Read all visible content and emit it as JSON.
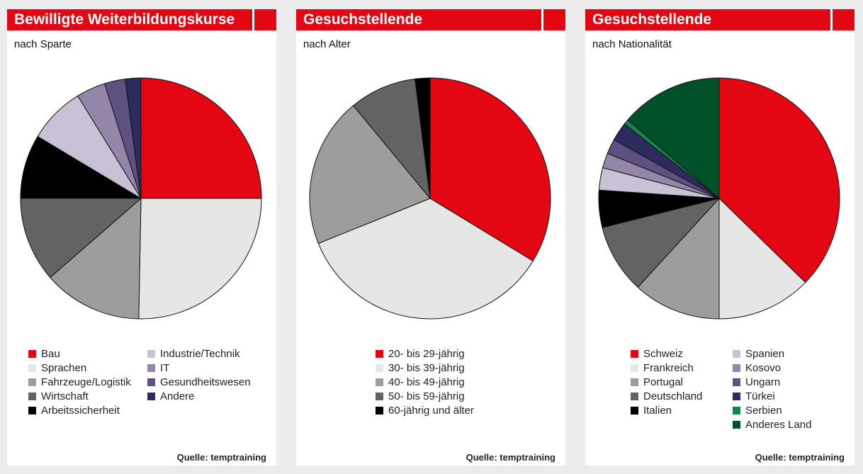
{
  "chart_data": [
    {
      "type": "pie",
      "title": "Bewilligte Weiterbildungskurse",
      "subtitle": "nach Sparte",
      "source": "Quelle: temptraining",
      "slices": [
        {
          "label": "Bau",
          "value": 25.0,
          "color": "#e30613"
        },
        {
          "label": "Sprachen",
          "value": 25.3,
          "color": "#e6e6e6"
        },
        {
          "label": "Fahrzeuge/Logistik",
          "value": 13.3,
          "color": "#9d9d9c"
        },
        {
          "label": "Wirtschaft",
          "value": 11.4,
          "color": "#646363"
        },
        {
          "label": "Arbeitssicherheit",
          "value": 8.6,
          "color": "#000000"
        },
        {
          "label": "Industrie/Technik",
          "value": 7.6,
          "color": "#c9c1d6"
        },
        {
          "label": "IT",
          "value": 3.9,
          "color": "#9386a8"
        },
        {
          "label": "Gesundheitswesen",
          "value": 2.8,
          "color": "#5e5181"
        },
        {
          "label": "Andere",
          "value": 2.1,
          "color": "#2d2a5e"
        }
      ]
    },
    {
      "type": "pie",
      "title": "Gesuchstellende",
      "subtitle": "nach Alter",
      "source": "Quelle: temptraining",
      "slices": [
        {
          "label": "20- bis 29-jährig",
          "value": 33.7,
          "color": "#e30613"
        },
        {
          "label": "30- bis 39-jährig",
          "value": 35.2,
          "color": "#e6e6e6"
        },
        {
          "label": "40- bis 49-jährig",
          "value": 20.1,
          "color": "#9d9d9c"
        },
        {
          "label": "50- bis 59-jährig",
          "value": 9.0,
          "color": "#646363"
        },
        {
          "label": "60-jährig und älter",
          "value": 2.0,
          "color": "#000000"
        }
      ]
    },
    {
      "type": "pie",
      "title": "Gesuchstellende",
      "subtitle": "nach Nationalität",
      "source": "Quelle: temptraining",
      "slices": [
        {
          "label": "Schweiz",
          "value": 37.3,
          "color": "#e30613"
        },
        {
          "label": "Frankreich",
          "value": 12.7,
          "color": "#e6e6e6"
        },
        {
          "label": "Portugal",
          "value": 11.8,
          "color": "#9d9d9c"
        },
        {
          "label": "Deutschland",
          "value": 9.3,
          "color": "#646363"
        },
        {
          "label": "Italien",
          "value": 5.0,
          "color": "#000000"
        },
        {
          "label": "Spanien",
          "value": 3.0,
          "color": "#c9c1d6"
        },
        {
          "label": "Kosovo",
          "value": 2.0,
          "color": "#9386a8"
        },
        {
          "label": "Ungarn",
          "value": 2.0,
          "color": "#5e5181"
        },
        {
          "label": "Türkei",
          "value": 2.5,
          "color": "#2d2a5e"
        },
        {
          "label": "Serbien",
          "value": 0.7,
          "color": "#12864a"
        },
        {
          "label": "Anderes Land",
          "value": 13.7,
          "color": "#00502a"
        }
      ]
    }
  ]
}
